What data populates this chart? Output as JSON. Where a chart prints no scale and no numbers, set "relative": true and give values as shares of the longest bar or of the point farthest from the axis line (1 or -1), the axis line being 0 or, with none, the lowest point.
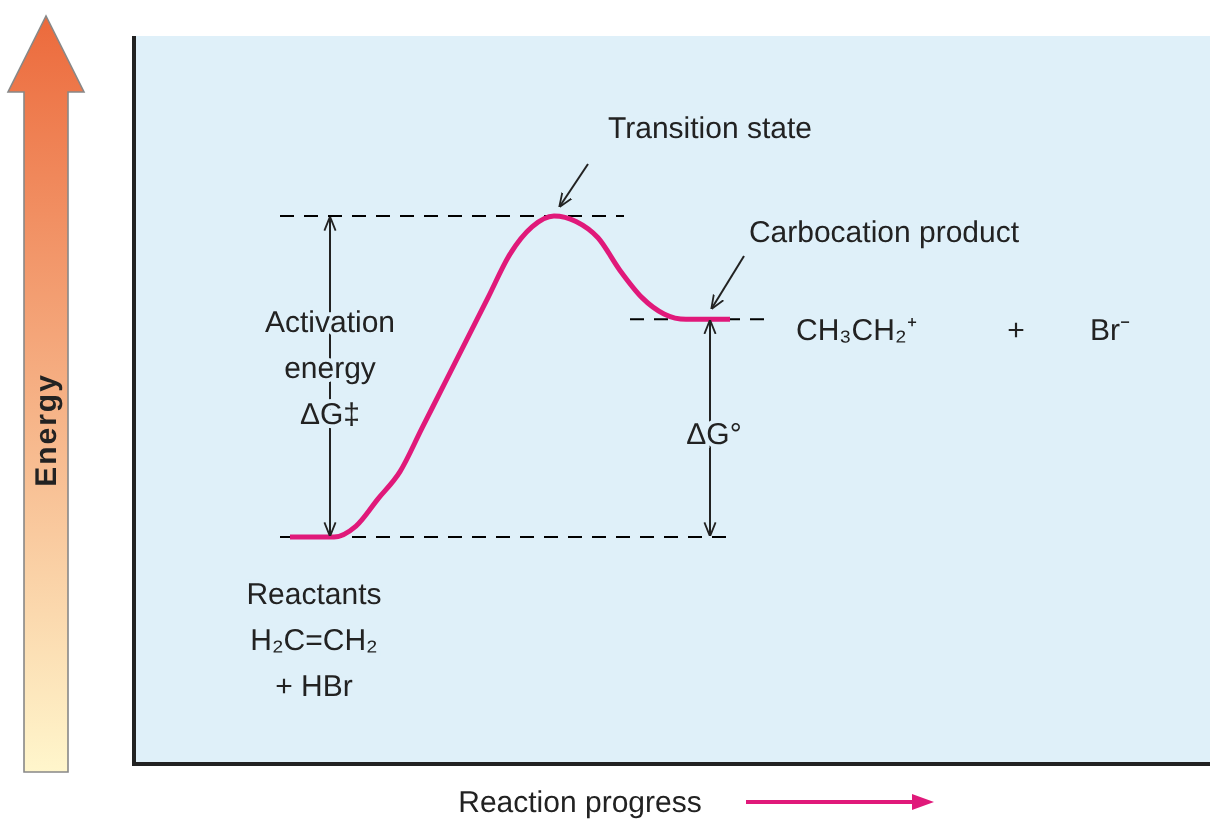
{
  "chart_data": {
    "type": "line",
    "relative": true,
    "xlabel": "Reaction progress",
    "categories": [
      null,
      null,
      null,
      null,
      null,
      null,
      null,
      null,
      null,
      null,
      null,
      null,
      null,
      null,
      null,
      null,
      null,
      null,
      null,
      null,
      null
    ],
    "series": [
      {
        "color": "#e0197a",
        "values": [
          0.41,
          0.41,
          0.41,
          0.43,
          0.48,
          0.53,
          0.61,
          0.69,
          0.77,
          0.85,
          0.93,
          0.98,
          1,
          0.99,
          0.96,
          0.9,
          0.85,
          0.82,
          0.81,
          0.81,
          0.81
        ]
      }
    ],
    "line_style": "solid",
    "marker": "none",
    "ref_lines": [
      {
        "axis": "y",
        "value": 0.41,
        "line_style": "dashed",
        "color": "#000000"
      },
      {
        "axis": "y",
        "value": 1,
        "line_style": "dashed",
        "color": "#000000"
      },
      {
        "axis": "y",
        "value": 0.81,
        "line_style": "dashed",
        "color": "#000000"
      }
    ],
    "annotations": [
      "Transition state",
      "Carbocation product",
      "CH₃CH₂⁺",
      "+",
      "Br⁻",
      "Activation\nenergy\nΔG‡",
      "ΔG°",
      "Reactants\nH₂C=CH₂\n+ HBr",
      "Energy"
    ]
  }
}
